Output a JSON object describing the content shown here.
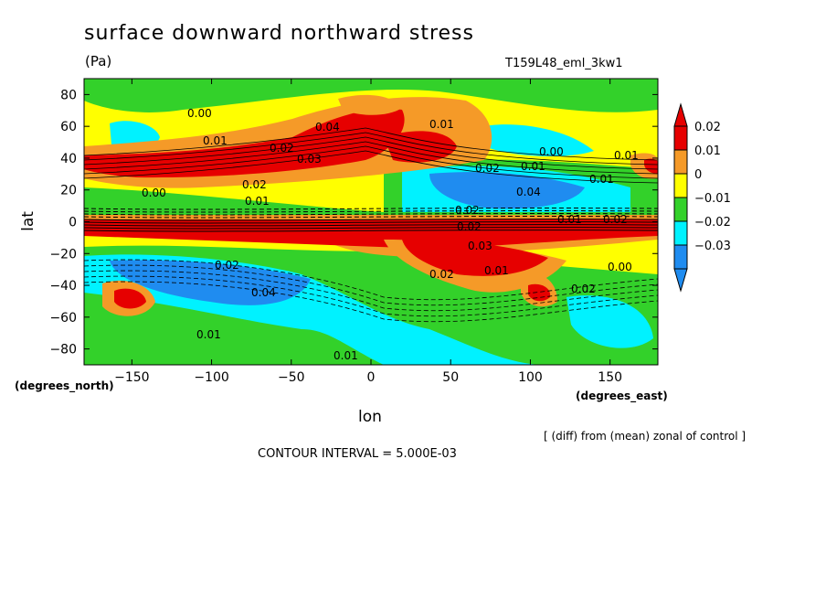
{
  "chart_data": {
    "type": "heatmap",
    "title": "surface downward northward stress",
    "units": "(Pa)",
    "run_id": "T159L48_eml_3kw1",
    "xlabel": "lon",
    "ylabel": "lat",
    "x_units": "(degrees_east)",
    "y_units": "(degrees_north)",
    "xlim": [
      -180,
      180
    ],
    "ylim": [
      -90,
      90
    ],
    "x_ticks": [
      -150,
      -100,
      -50,
      0,
      50,
      100,
      150
    ],
    "y_ticks": [
      -80,
      -60,
      -40,
      -20,
      0,
      20,
      40,
      60,
      80
    ],
    "colorbar": {
      "levels": [
        0.02,
        0.01,
        0,
        -0.01,
        -0.02,
        -0.03
      ],
      "level_labels": [
        "0.02",
        "0.01",
        "0",
        "−0.01",
        "−0.02",
        "−0.03"
      ],
      "colors": [
        "#e60000",
        "#f59a28",
        "#ffff00",
        "#33d12a",
        "#00f2ff",
        "#1f8cf0"
      ]
    },
    "contour_labels": [
      "0.00",
      "0.01",
      "0.02",
      "0.03",
      "0.04",
      "0.02",
      "0.01",
      "0.00",
      "0.01",
      "0.01",
      "0.02",
      "0.04",
      "0.00",
      "0.01",
      "0.01",
      "0.02",
      "0.01",
      "0.02",
      "0.02",
      "0.03",
      "0.02",
      "0.04",
      "0.02",
      "0.01",
      "0.02",
      "0.00",
      "0.01",
      "0.01"
    ],
    "note": "[ (diff) from (mean) zonal of control ]",
    "contour_interval": "CONTOUR INTERVAL = 5.000E-03"
  },
  "colors": {
    "plot_background": "#ffff00"
  }
}
